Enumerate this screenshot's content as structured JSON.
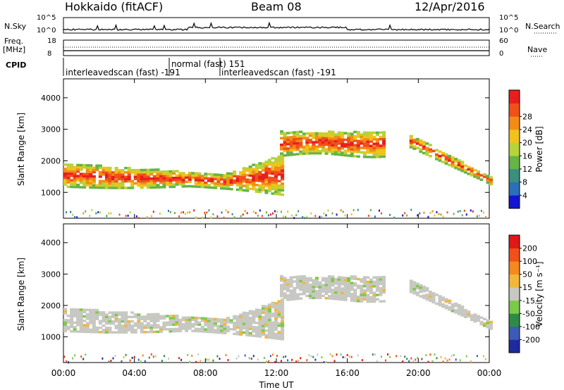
{
  "header": {
    "station": "Hokkaido (fitACF)",
    "beam": "Beam 08",
    "date": "12/Apr/2016"
  },
  "strips": {
    "nsky_label": "N.Sky",
    "nsearch_label": "N.Search",
    "nsky_ticks": [
      "10^5",
      "10^0"
    ],
    "nsky_right_ticks": [
      "10^5",
      "10^0"
    ],
    "freq_label": "Freq.",
    "freq_unit": "[MHz]",
    "freq_ticks": [
      "18",
      "8"
    ],
    "nave_label": "Nave",
    "nave_ticks": [
      "60",
      "0"
    ],
    "cpid_label": "CPID",
    "cpid_segments": [
      {
        "text": "interleavedscan (fast) -191"
      },
      {
        "text": "normal (fast) 151"
      },
      {
        "text": "interleavedscan (fast) -191"
      }
    ]
  },
  "chart_data": [
    {
      "type": "heatmap",
      "name": "power",
      "ylabel": "Slant Range [km]",
      "xlabel": "",
      "x_ticks": [
        "00:00",
        "04:00",
        "08:00",
        "12:00",
        "16:00",
        "20:00",
        "00:00"
      ],
      "xlim_hours": [
        0,
        24
      ],
      "ylim": [
        180,
        4600
      ],
      "y_ticks": [
        "1000",
        "2000",
        "3000",
        "4000"
      ],
      "colorbar_label": "Power [dB]",
      "colorbar_ticks": [
        "4",
        "8",
        "12",
        "16",
        "20",
        "24",
        "28"
      ],
      "colorbar_colors": [
        "#1414d2",
        "#2b6fb8",
        "#3a8f7f",
        "#66b347",
        "#b6d338",
        "#f0c21c",
        "#f28c18",
        "#f0501a",
        "#e81e1e"
      ]
    },
    {
      "type": "heatmap",
      "name": "velocity",
      "ylabel": "Slant Range [km]",
      "xlabel": "Time UT",
      "x_ticks": [
        "00:00",
        "04:00",
        "08:00",
        "12:00",
        "16:00",
        "20:00",
        "00:00"
      ],
      "xlim_hours": [
        0,
        24
      ],
      "ylim": [
        180,
        4600
      ],
      "y_ticks": [
        "1000",
        "2000",
        "3000",
        "4000"
      ],
      "colorbar_label": "Velocity [m s⁻¹]",
      "colorbar_ticks": [
        "200",
        "100",
        "50",
        "15",
        "-15",
        "-50",
        "-100",
        "-200"
      ],
      "colorbar_colors": [
        "#1e2b9e",
        "#3b5bb5",
        "#2f8a48",
        "#7cc94a",
        "#c8c8c2",
        "#f2b63a",
        "#f28a22",
        "#f0501a",
        "#e01818"
      ]
    }
  ]
}
